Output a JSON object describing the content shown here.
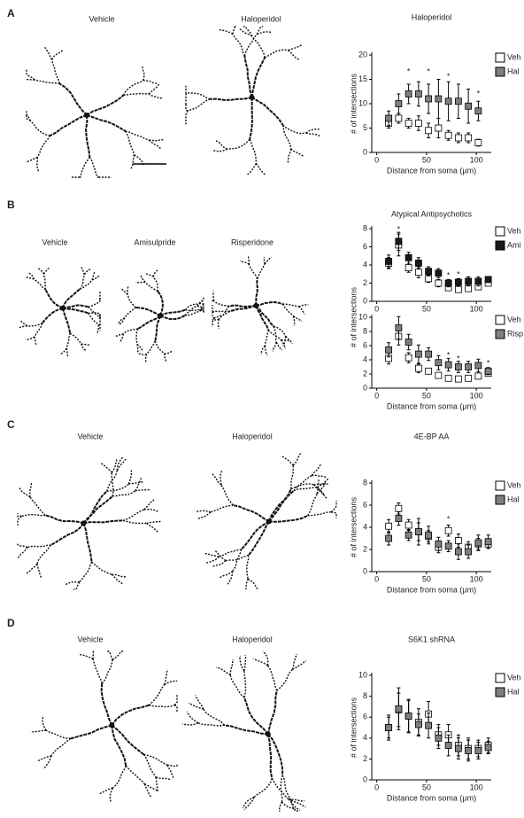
{
  "panels": [
    {
      "letter": "A",
      "image_labels": [
        "Vehicle",
        "Haloperidol"
      ]
    },
    {
      "letter": "B",
      "image_labels": [
        "Vehicle",
        "Amisulpride",
        "Risperidone"
      ]
    },
    {
      "letter": "C",
      "image_labels": [
        "Vehicle",
        "Haloperidol"
      ]
    },
    {
      "letter": "D",
      "image_labels": [
        "Vehicle",
        "Haloperidol"
      ]
    }
  ],
  "chart_data": [
    {
      "type": "errorbar",
      "title": "Haloperidol",
      "x_label": "Distance from soma (μm)",
      "y_label": "# of intersections",
      "x": [
        12,
        22,
        32,
        42,
        52,
        62,
        72,
        82,
        92,
        102
      ],
      "series": [
        {
          "name": "Veh",
          "color": "#ffffff",
          "values": [
            6,
            7,
            6,
            6,
            4.5,
            5,
            3.5,
            3,
            3,
            2
          ],
          "errors": [
            1,
            1,
            1,
            1.5,
            1.5,
            2,
            1,
            1,
            1,
            0.7
          ]
        },
        {
          "name": "Hal",
          "color": "#7f7f7f",
          "values": [
            7,
            10,
            12,
            12,
            11,
            11,
            10.5,
            10.5,
            9.5,
            8.5
          ],
          "errors": [
            1.5,
            2,
            2,
            2.5,
            3,
            4,
            4,
            3.5,
            3.5,
            2
          ]
        }
      ],
      "annotations": [
        {
          "text": "*",
          "x": 32,
          "y": 16.5
        },
        {
          "text": "*",
          "x": 52,
          "y": 16.5
        },
        {
          "text": "*",
          "x": 72,
          "y": 15.5
        },
        {
          "text": "*",
          "x": 102,
          "y": 12
        }
      ],
      "xlim": [
        -5,
        115
      ],
      "ylim": [
        0,
        20
      ],
      "xticks": [
        0,
        50,
        100
      ],
      "yticks": [
        0,
        5,
        10,
        15,
        20
      ],
      "legend_position": "upper right"
    },
    {
      "type": "errorbar",
      "title": "Atypical Antipsychotics",
      "x": [
        12,
        22,
        32,
        42,
        52,
        62,
        72,
        82,
        92,
        102,
        112
      ],
      "series": [
        {
          "name": "Veh",
          "color": "#ffffff",
          "values": [
            4.2,
            6.2,
            3.7,
            3.2,
            2.5,
            2.0,
            1.5,
            1.3,
            1.4,
            1.6,
            2.0
          ],
          "errors": [
            0.6,
            1.2,
            0.5,
            0.6,
            0.4,
            0.4,
            0.3,
            0.3,
            0.3,
            0.3,
            0.3
          ]
        },
        {
          "name": "Ami",
          "color": "#1a1a1a",
          "values": [
            4.4,
            6.6,
            4.8,
            4.2,
            3.3,
            3.1,
            2.0,
            2.1,
            2.2,
            2.2,
            2.4
          ],
          "errors": [
            0.7,
            1.0,
            0.6,
            0.6,
            0.5,
            0.5,
            0.4,
            0.4,
            0.5,
            0.5,
            0.3
          ]
        }
      ],
      "annotations": [
        {
          "text": "*",
          "x": 22,
          "y": 7.9
        },
        {
          "text": "*",
          "x": 72,
          "y": 2.8
        },
        {
          "text": "*",
          "x": 82,
          "y": 2.9
        }
      ],
      "xlim": [
        -5,
        115
      ],
      "ylim": [
        0,
        8
      ],
      "xticks": [
        0,
        50,
        100
      ],
      "yticks": [
        0,
        2,
        4,
        6,
        8
      ],
      "legend_position": "upper right"
    },
    {
      "type": "errorbar",
      "x_label": "Distance from soma (μm)",
      "y_label": "# of intersections",
      "x": [
        12,
        22,
        32,
        42,
        52,
        62,
        72,
        82,
        92,
        102,
        112
      ],
      "series": [
        {
          "name": "Veh",
          "color": "#ffffff",
          "values": [
            4.2,
            7.3,
            4.3,
            2.8,
            2.4,
            1.8,
            1.4,
            1.3,
            1.4,
            1.7,
            2.1
          ],
          "errors": [
            0.8,
            1.2,
            0.7,
            0.6,
            0.4,
            0.4,
            0.3,
            0.3,
            0.3,
            0.4,
            0.3
          ]
        },
        {
          "name": "Risp",
          "color": "#7f7f7f",
          "values": [
            5.4,
            8.5,
            6.5,
            4.8,
            4.8,
            3.6,
            3.3,
            3.0,
            3.0,
            3.2,
            2.4
          ],
          "errors": [
            1.0,
            1.6,
            1.1,
            1.3,
            0.9,
            1.0,
            0.9,
            0.8,
            0.8,
            0.9,
            0.5
          ]
        }
      ],
      "annotations": [
        {
          "text": "*",
          "x": 72,
          "y": 4.6
        },
        {
          "text": "*",
          "x": 82,
          "y": 4.1
        },
        {
          "text": "*",
          "x": 112,
          "y": 3.5
        }
      ],
      "xlim": [
        -5,
        115
      ],
      "ylim": [
        0,
        10
      ],
      "xticks": [
        0,
        50,
        100
      ],
      "yticks": [
        0,
        2,
        4,
        6,
        8,
        10
      ],
      "legend_position": "upper right"
    },
    {
      "type": "errorbar",
      "title": "4E-BP AA",
      "x_label": "Distance from soma (μm)",
      "y_label": "# of intersections",
      "x": [
        12,
        22,
        32,
        42,
        52,
        62,
        72,
        82,
        92,
        102,
        112
      ],
      "series": [
        {
          "name": "Veh",
          "color": "#ffffff",
          "values": [
            4.1,
            5.7,
            4.2,
            3.6,
            3.2,
            2.2,
            3.7,
            2.8,
            2.2,
            2.5,
            2.5
          ],
          "errors": [
            0.6,
            0.5,
            0.5,
            0.8,
            0.5,
            0.5,
            0.5,
            0.6,
            0.5,
            0.5,
            0.4
          ]
        },
        {
          "name": "Hal",
          "color": "#7f7f7f",
          "values": [
            3.0,
            4.8,
            3.3,
            3.6,
            3.3,
            2.5,
            2.3,
            1.8,
            1.8,
            2.6,
            2.7
          ],
          "errors": [
            0.6,
            0.6,
            0.5,
            1.2,
            0.8,
            0.6,
            0.5,
            0.7,
            0.6,
            0.7,
            0.6
          ]
        }
      ],
      "annotations": [
        {
          "text": "*",
          "x": 72,
          "y": 4.7
        }
      ],
      "xlim": [
        -5,
        115
      ],
      "ylim": [
        0,
        8
      ],
      "xticks": [
        0,
        50,
        100
      ],
      "yticks": [
        0,
        2,
        4,
        6,
        8
      ],
      "legend_position": "upper right"
    },
    {
      "type": "errorbar",
      "title": "S6K1 shRNA",
      "x_label": "Distance from soma (μm)",
      "y_label": "# of intersections",
      "x": [
        12,
        22,
        32,
        42,
        52,
        62,
        72,
        82,
        92,
        102,
        112
      ],
      "series": [
        {
          "name": "Veh",
          "color": "#ffffff",
          "values": [
            5,
            6.7,
            6.1,
            5.5,
            6.3,
            4.3,
            4.3,
            3.3,
            3,
            3,
            3.3
          ],
          "errors": [
            1.2,
            1.6,
            1.5,
            1.3,
            1.2,
            1.0,
            1.0,
            1.0,
            1.0,
            0.8,
            0.7
          ]
        },
        {
          "name": "Hal",
          "color": "#7f7f7f",
          "values": [
            5,
            6.8,
            6.1,
            5.3,
            5.2,
            4,
            3.3,
            3,
            2.8,
            2.8,
            3.1
          ],
          "errors": [
            1.0,
            2.0,
            1.6,
            1.0,
            1.2,
            1.0,
            1.0,
            1.0,
            1.0,
            0.8,
            0.6
          ]
        }
      ],
      "annotations": [],
      "xlim": [
        -5,
        115
      ],
      "ylim": [
        0,
        10
      ],
      "xticks": [
        0,
        50,
        100
      ],
      "yticks": [
        0,
        2,
        4,
        6,
        8,
        10
      ],
      "legend_position": "upper right"
    }
  ]
}
